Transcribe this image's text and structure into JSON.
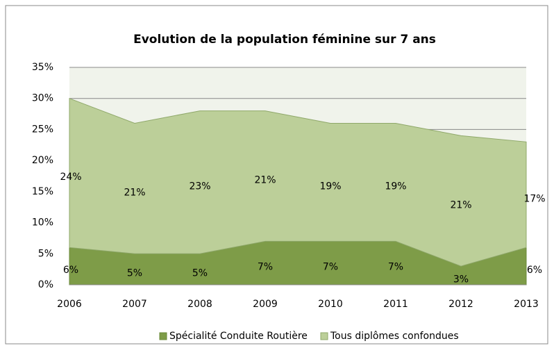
{
  "chart_data": {
    "type": "stacked_area",
    "title": "Evolution de la population féminine sur 7 ans",
    "categories": [
      "2006",
      "2007",
      "2008",
      "2009",
      "2010",
      "2011",
      "2012",
      "2013"
    ],
    "series": [
      {
        "name": "Spécialité Conduite Routière",
        "color": "#7e9c48",
        "values": [
          6,
          5,
          5,
          7,
          7,
          7,
          3,
          6
        ],
        "value_labels": [
          "6%",
          "5%",
          "5%",
          "7%",
          "7%",
          "7%",
          "3%",
          "6%"
        ]
      },
      {
        "name": "Tous diplômes confondues",
        "color": "#bccf99",
        "values": [
          24,
          21,
          23,
          21,
          19,
          19,
          21,
          17
        ],
        "value_labels": [
          "24%",
          "21%",
          "23%",
          "21%",
          "19%",
          "19%",
          "21%",
          "17%"
        ]
      }
    ],
    "ylim": [
      0,
      35
    ],
    "yticks": [
      {
        "value": 0,
        "label": "0%"
      },
      {
        "value": 5,
        "label": "5%"
      },
      {
        "value": 10,
        "label": "10%"
      },
      {
        "value": 15,
        "label": "15%"
      },
      {
        "value": 20,
        "label": "20%"
      },
      {
        "value": 25,
        "label": "25%"
      },
      {
        "value": 30,
        "label": "30%"
      },
      {
        "value": 35,
        "label": "35%"
      }
    ],
    "grid": true,
    "legend": "bottom"
  }
}
